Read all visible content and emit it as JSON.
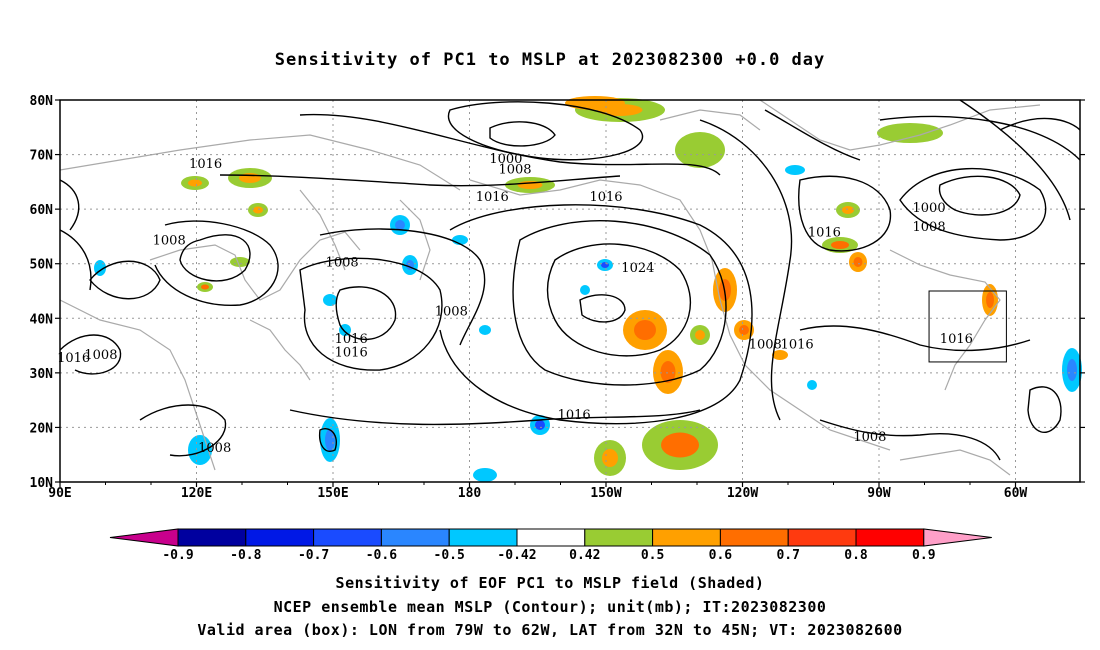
{
  "title": "Sensitivity of PC1 to MSLP at 2023082300 +0.0 day",
  "map": {
    "lat_labels": [
      "80N",
      "70N",
      "60N",
      "50N",
      "40N",
      "30N",
      "20N",
      "10N"
    ],
    "lon_labels": [
      "90E",
      "120E",
      "150E",
      "180",
      "150W",
      "120W",
      "90W",
      "60W"
    ],
    "contour_labels": [
      {
        "text": "1000",
        "lon": -172,
        "lat": 68.5
      },
      {
        "text": "1008",
        "lon": -170,
        "lat": 66.5
      },
      {
        "text": "1016",
        "lon": -175,
        "lat": 61.5
      },
      {
        "text": "1016",
        "lon": -150,
        "lat": 61.5
      },
      {
        "text": "1016",
        "lon": 122,
        "lat": 67.5
      },
      {
        "text": "1008",
        "lon": 114,
        "lat": 53.5
      },
      {
        "text": "1008",
        "lon": 152,
        "lat": 49.5
      },
      {
        "text": "1008",
        "lon": -184,
        "lat": 40.5
      },
      {
        "text": "1024",
        "lon": -143,
        "lat": 48.5
      },
      {
        "text": "1016",
        "lon": 154,
        "lat": 35.5
      },
      {
        "text": "1016",
        "lon": 154,
        "lat": 33.0
      },
      {
        "text": "1016",
        "lon": 93,
        "lat": 32.0
      },
      {
        "text": "1008",
        "lon": 99,
        "lat": 32.5
      },
      {
        "text": "1008",
        "lon": -115,
        "lat": 34.5
      },
      {
        "text": "1016",
        "lon": -108,
        "lat": 34.5
      },
      {
        "text": "1016",
        "lon": -157,
        "lat": 21.5
      },
      {
        "text": "1008",
        "lon": -92,
        "lat": 17.5
      },
      {
        "text": "1008",
        "lon": 124,
        "lat": 15.5
      },
      {
        "text": "1016",
        "lon": -102,
        "lat": 55.0
      },
      {
        "text": "1000",
        "lon": -79,
        "lat": 59.5
      },
      {
        "text": "1008",
        "lon": -79,
        "lat": 56.0
      },
      {
        "text": "1016",
        "lon": -73,
        "lat": 35.5
      }
    ],
    "valid_box": {
      "lon_min": -79,
      "lon_max": -62,
      "lat_min": 32,
      "lat_max": 45
    }
  },
  "colorbar": {
    "labels": [
      "-0.9",
      "-0.8",
      "-0.7",
      "-0.6",
      "-0.5",
      "-0.42",
      "0.42",
      "0.5",
      "0.6",
      "0.7",
      "0.8",
      "0.9"
    ],
    "colors": [
      "#00009f",
      "#0018e6",
      "#1a4bff",
      "#2a86ff",
      "#00c8ff",
      "#ffffff",
      "#99cc33",
      "#ffa000",
      "#ff6e00",
      "#ff3a0f",
      "#ff0000"
    ],
    "end_low": "#c8008c",
    "end_high": "#ff9fc8"
  },
  "captions": [
    "Sensitivity of EOF PC1 to MSLP field (Shaded)",
    "NCEP ensemble mean MSLP (Contour); unit(mb); IT:2023082300",
    "Valid area (box): LON from 79W to 62W, LAT from 32N to 45N; VT: 2023082600"
  ]
}
